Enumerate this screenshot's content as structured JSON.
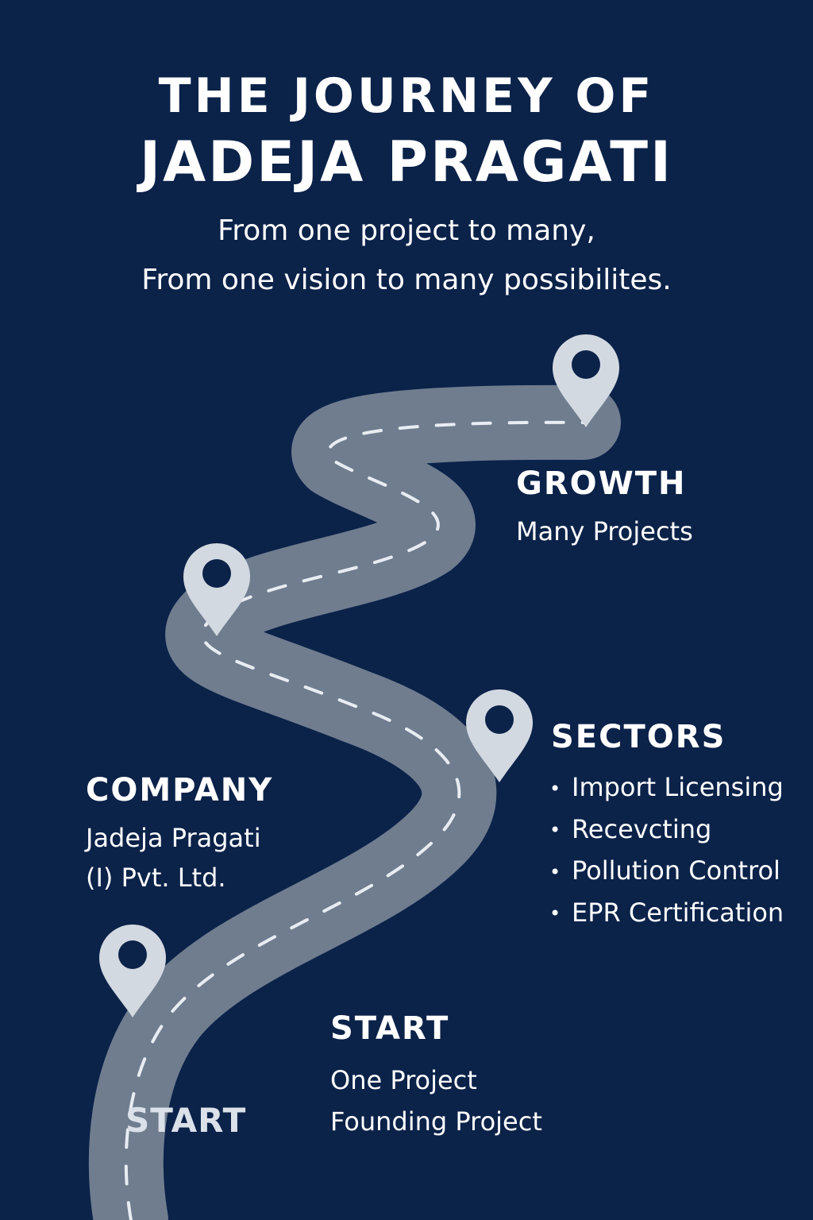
{
  "header": {
    "title_line1": "THE JOURNEY OF",
    "title_line2": "JADEJA PRAGATI",
    "subtitle_line1": "From one project to many,",
    "subtitle_line2": "From one vision to many possibilites."
  },
  "road": {
    "label": "START"
  },
  "milestones": {
    "growth": {
      "heading": "GROWTH",
      "text": "Many Projects"
    },
    "sectors": {
      "heading": "SECTORS",
      "items": [
        "Import Licensing",
        "Recevcting",
        "Pollution Control",
        "EPR Certification"
      ]
    },
    "company": {
      "heading": "COMPANY",
      "line1": "Jadeja Pragati",
      "line2": "(I) Pvt. Ltd."
    },
    "start": {
      "heading": "START",
      "line1": "One Project",
      "line2": "Founding Project"
    }
  },
  "colors": {
    "background": "#0b2249",
    "road": "#6f7d8f",
    "road_dash": "#e8edf3",
    "pin": "#d3d9e1"
  },
  "icons": [
    "map-pin-icon"
  ]
}
